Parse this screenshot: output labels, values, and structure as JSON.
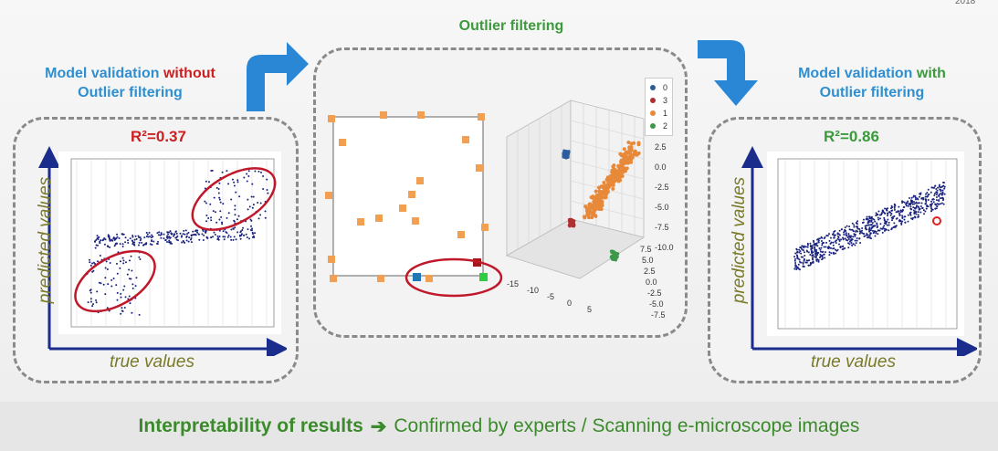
{
  "corner_text": "2018",
  "center": {
    "title": "Outlier filtering",
    "legend": [
      {
        "label": "0",
        "color": "#2b5c9e"
      },
      {
        "label": "3",
        "color": "#b03030"
      },
      {
        "label": "1",
        "color": "#e8893a"
      },
      {
        "label": "2",
        "color": "#3a9a4a"
      }
    ],
    "z_ticks": [
      "2.5",
      "0.0",
      "-2.5",
      "-5.0",
      "-7.5",
      "-10.0"
    ],
    "y_ticks": [
      "7.5",
      "5.0",
      "2.5",
      "0.0",
      "-2.5",
      "-5.0",
      "-7.5"
    ],
    "x_ticks": [
      "-15",
      "-10",
      "-5",
      "0",
      "5"
    ]
  },
  "left": {
    "heading_part1": "Model validation",
    "heading_part2": "without",
    "heading_part3": "Outlier filtering",
    "r2_label": "R²=0.37",
    "y_axis_label": "predicted values",
    "x_axis_label": "true values"
  },
  "right": {
    "heading_part1": "Model validation",
    "heading_part2": "with",
    "heading_part3": "Outlier filtering",
    "r2_label": "R²=0.86",
    "y_axis_label": "predicted values",
    "x_axis_label": "true values"
  },
  "footer": {
    "bold_text": "Interpretability of results",
    "arrow": "➔",
    "rest_text": "Confirmed by experts / Scanning e-microscope images"
  },
  "colors": {
    "blue": "#2f8fd0",
    "red": "#cc1f1f",
    "green": "#3b9a3b",
    "scatter": "#1a237e",
    "orange_marker": "#f0a050"
  }
}
